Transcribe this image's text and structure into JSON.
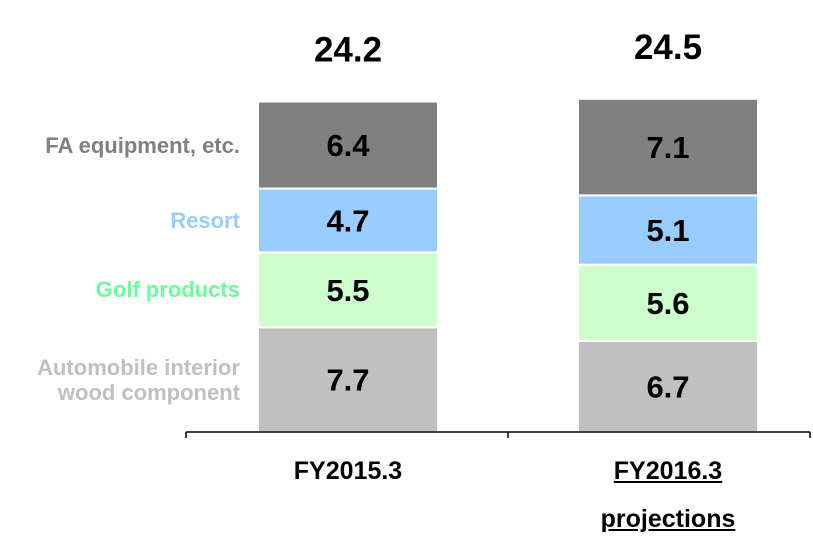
{
  "chart_data": {
    "type": "stacked_bar",
    "categories": [
      "FY2015.3",
      "FY2016.3 projections"
    ],
    "totals": [
      24.2,
      24.5
    ],
    "series": [
      {
        "name": "Automobile interior wood component",
        "color": "#c0c0c0",
        "label_color": "#c0c0c0",
        "values": [
          7.7,
          6.7
        ]
      },
      {
        "name": "Golf products",
        "color": "#ccffcc",
        "label_color": "#66ff99",
        "values": [
          5.5,
          5.6
        ]
      },
      {
        "name": "Resort",
        "color": "#99ccff",
        "label_color": "#99ccff",
        "values": [
          4.7,
          5.1
        ]
      },
      {
        "name": "FA equipment, etc.",
        "color": "#808080",
        "label_color": "#808080",
        "values": [
          6.4,
          7.1
        ]
      }
    ]
  }
}
